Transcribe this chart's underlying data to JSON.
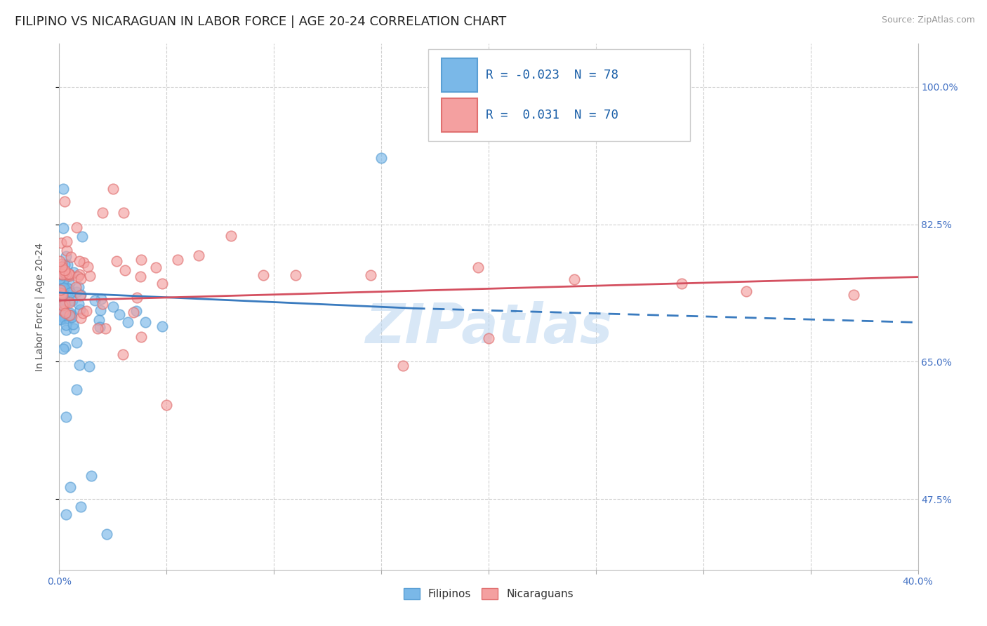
{
  "title": "FILIPINO VS NICARAGUAN IN LABOR FORCE | AGE 20-24 CORRELATION CHART",
  "source": "Source: ZipAtlas.com",
  "ylabel": "In Labor Force | Age 20-24",
  "xlim": [
    0.0,
    0.4
  ],
  "ylim": [
    0.385,
    1.055
  ],
  "filipino_R": -0.023,
  "filipino_N": 78,
  "nicaraguan_R": 0.031,
  "nicaraguan_N": 70,
  "legend_label_filipino": "Filipinos",
  "legend_label_nicaraguan": "Nicaraguans",
  "filipino_color": "#7ab8e8",
  "filipino_edge": "#5a9fd4",
  "nicaraguan_color": "#f4a0a0",
  "nicaraguan_edge": "#e07070",
  "trend_blue": "#3a7bbf",
  "trend_pink": "#d45060",
  "watermark_color": "#b8d4f0",
  "background_color": "#ffffff",
  "grid_color": "#d0d0d0",
  "ytick_positions": [
    0.475,
    0.65,
    0.825,
    1.0
  ],
  "ytick_labels": [
    "47.5%",
    "65.0%",
    "82.5%",
    "100.0%"
  ],
  "tick_color": "#4472c4",
  "title_fontsize": 13,
  "source_fontsize": 9,
  "axis_label_fontsize": 10,
  "tick_fontsize": 10,
  "legend_R_color": "#1a5fa8",
  "legend_N_color": "#1a5fa8"
}
